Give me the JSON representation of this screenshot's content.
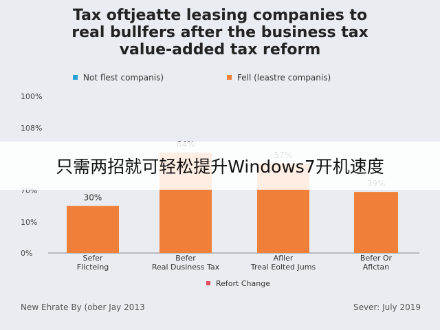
{
  "title_lines": [
    "Tax oftjeatte leasing companies to",
    "real bullfers after the business tax",
    "value-added tax reform"
  ],
  "overlay_caption": "只需两招就可轻松提升Windows7开机速度",
  "footer": {
    "left": "New Ehrate By (ober Jay 2013",
    "right": "Sever: July 2019"
  },
  "colors": {
    "bar": "#f07f3a",
    "legend_blue": "#2a9fd6",
    "legend_red": "#e04a5a",
    "axis": "#888888"
  },
  "chart_data": {
    "type": "bar",
    "title": "Tax oftjeatte leasing companies to real bullfers after the business tax value-added tax reform",
    "categories": [
      [
        "Sefer",
        "Flicteing"
      ],
      [
        "Befer",
        "Real Dusiness Tax"
      ],
      [
        "Afller",
        "Treal Eolted Jums"
      ],
      [
        "Befer Or",
        "Aflctan"
      ]
    ],
    "values": [
      30,
      64,
      57,
      39
    ],
    "data_labels": [
      "30%",
      "64%",
      "57%",
      "39%"
    ],
    "ytick_labels": [
      "0%",
      "10%",
      "70%",
      "",
      "108%",
      "100%"
    ],
    "legend": [
      {
        "label": "Not flest companis)",
        "color": "#2a9fd6"
      },
      {
        "label": "Fell (leastre companis)",
        "color": "#f07f3a"
      }
    ],
    "bottom_legend": {
      "label": "Refort Change",
      "color": "#e04a5a"
    },
    "grid": false,
    "legend_position": "top"
  }
}
